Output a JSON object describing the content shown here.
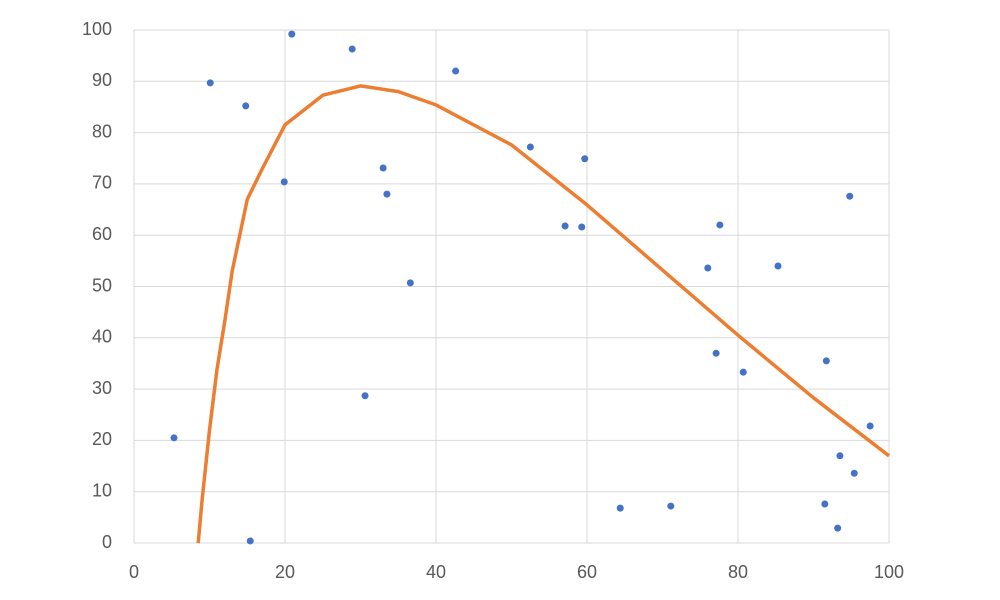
{
  "chart_data": {
    "type": "scatter",
    "series": [
      {
        "mode": "markers",
        "color": "#4472c4",
        "x": [
          5.3,
          10.1,
          14.8,
          15.4,
          19.9,
          20.9,
          28.9,
          30.6,
          33.0,
          33.5,
          36.6,
          42.6,
          52.5,
          57.1,
          59.3,
          59.7,
          64.4,
          71.1,
          76.0,
          77.1,
          77.6,
          80.7,
          85.3,
          91.5,
          91.7,
          93.2,
          93.5,
          94.8,
          95.4,
          97.5
        ],
        "y": [
          20.5,
          89.7,
          85.2,
          0.4,
          70.4,
          99.2,
          96.3,
          28.7,
          73.1,
          68.0,
          50.7,
          92.0,
          77.2,
          61.8,
          61.6,
          74.9,
          6.8,
          7.2,
          53.6,
          37.0,
          62.0,
          33.3,
          54.0,
          7.6,
          35.5,
          2.9,
          17.0,
          67.6,
          13.6,
          22.8
        ]
      },
      {
        "mode": "line",
        "color": "#ed7d31",
        "x": [
          8.5,
          9,
          10,
          11,
          12,
          13,
          15,
          17,
          20,
          25,
          30,
          35,
          40,
          50,
          60,
          70,
          80,
          90,
          100
        ],
        "y": [
          0,
          8,
          22,
          34,
          43,
          53,
          67,
          73,
          81.5,
          87.3,
          89.1,
          88,
          85.4,
          77.6,
          65.9,
          53.2,
          40.5,
          28.3,
          17
        ]
      }
    ],
    "xlim": [
      0,
      100
    ],
    "xticks": [
      0,
      20,
      40,
      60,
      80,
      100
    ],
    "ylim": [
      0,
      100
    ],
    "yticks": [
      0,
      10,
      20,
      30,
      40,
      50,
      60,
      70,
      80,
      90,
      100
    ],
    "grid": true
  }
}
